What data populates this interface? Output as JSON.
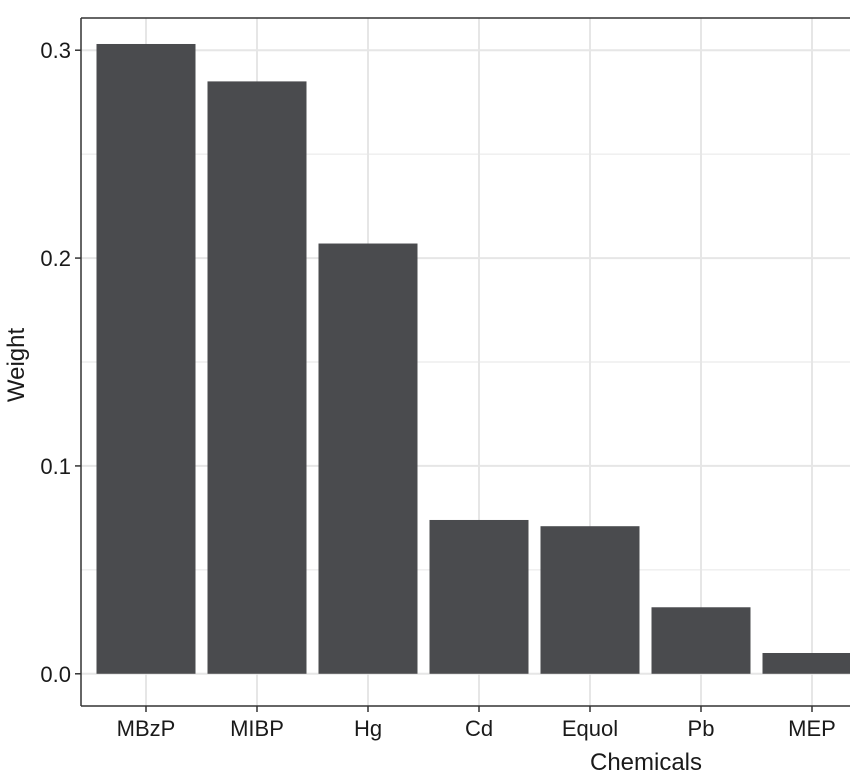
{
  "chart_data": {
    "type": "bar",
    "categories": [
      "MBzP",
      "MIBP",
      "Hg",
      "Cd",
      "Equol",
      "Pb",
      "MEP"
    ],
    "values": [
      0.303,
      0.285,
      0.207,
      0.074,
      0.071,
      0.032,
      0.01
    ],
    "xlabel": "Chemicals",
    "ylabel": "Weight",
    "ylim": [
      -0.0155,
      0.3155
    ],
    "yticks": [
      "0.0",
      "0.1",
      "0.2",
      "0.3"
    ],
    "ytick_values": [
      0.0,
      0.1,
      0.2,
      0.3
    ],
    "minor_ytick_values": [
      0.05,
      0.15,
      0.25
    ],
    "grid": true,
    "legend": "none",
    "colors": {
      "bar": "#4a4b4e",
      "grid": "#e6e6e6",
      "panel_border": "#333333",
      "background": "#ffffff"
    }
  }
}
